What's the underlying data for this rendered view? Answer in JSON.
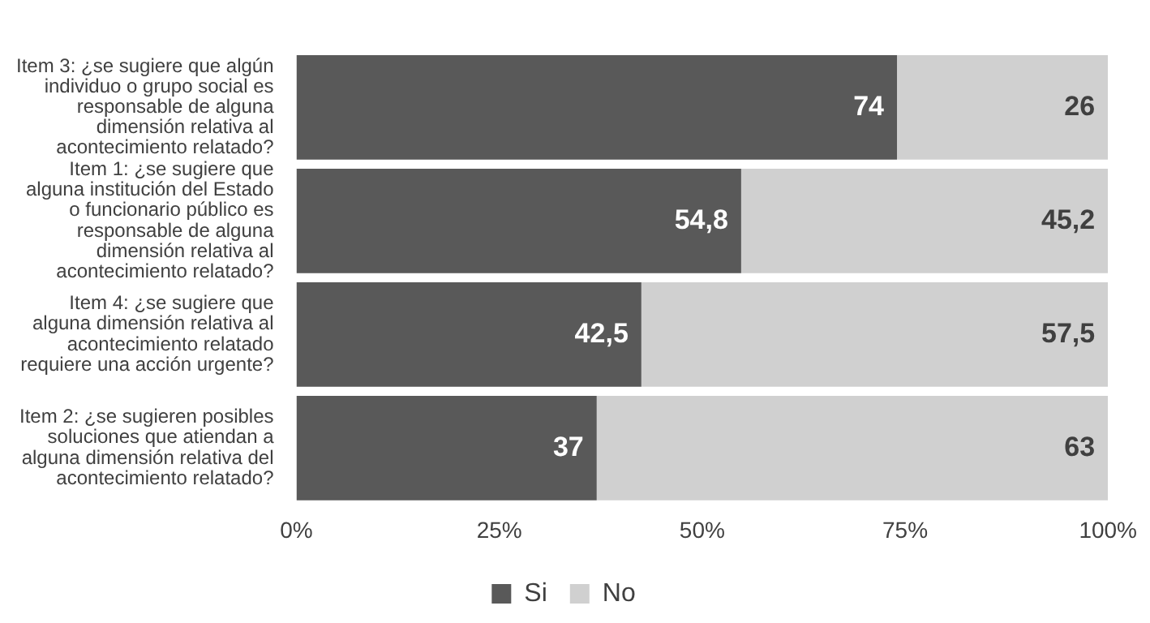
{
  "chart_data": {
    "type": "bar",
    "orientation": "horizontal",
    "stacked": true,
    "legend": "bottom",
    "grid": false,
    "categories": [
      "Item 3: ¿se sugiere que algún individuo o grupo social es responsable de alguna dimensión relativa al acontecimiento relatado?",
      "Item 1: ¿se sugiere que alguna institución del Estado o funcionario público es responsable de alguna dimensión relativa al acontecimiento relatado?",
      "Item 4: ¿se sugiere que alguna dimensión relativa al acontecimiento relatado requiere una acción urgente?",
      "Item 2: ¿se sugieren posibles soluciones que atiendan a alguna dimensión relativa del acontecimiento relatado?"
    ],
    "series": [
      {
        "name": "Si",
        "color": "#595959",
        "values": [
          74,
          54.8,
          42.5,
          37
        ],
        "value_labels": [
          "74",
          "54,8",
          "42,5",
          "37"
        ]
      },
      {
        "name": "No",
        "color": "#d0d0d0",
        "values": [
          26,
          45.2,
          57.5,
          63
        ],
        "value_labels": [
          "26",
          "45,2",
          "57,5",
          "63"
        ]
      }
    ],
    "xlim": [
      0,
      100
    ],
    "xticks": [
      {
        "value": 0,
        "label": "0%"
      },
      {
        "value": 25,
        "label": "25%"
      },
      {
        "value": 50,
        "label": "50%"
      },
      {
        "value": 75,
        "label": "75%"
      },
      {
        "value": 100,
        "label": "100%"
      }
    ]
  }
}
